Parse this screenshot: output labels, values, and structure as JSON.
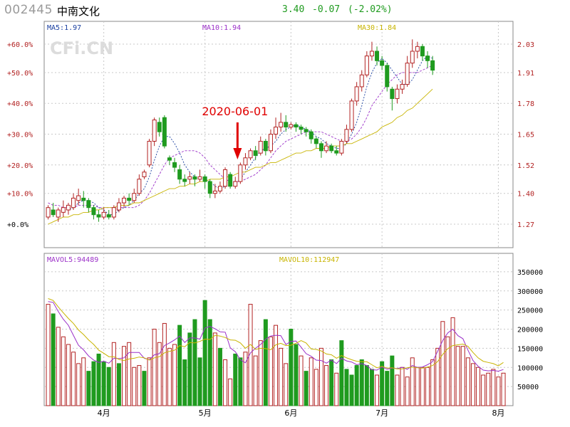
{
  "header": {
    "code": "002445",
    "name": "中南文化",
    "price": "3.40",
    "change": "-0.07",
    "change_pct": "(-2.02%)"
  },
  "colors": {
    "up": "#b22222",
    "down": "#1f9b1f",
    "ma5": "#1a3fa0",
    "ma10": "#9b30c8",
    "ma30": "#c8b400",
    "grid": "#c8c8c8",
    "annotation": "#e00000"
  },
  "chart_data": [
    {
      "type": "candlestick",
      "watermark": "CFi.CN",
      "legend": {
        "ma5": "MA5:1.97",
        "ma10": "MA10:1.94",
        "ma30": "MA30:1.84"
      },
      "y_left_ticks": [
        "+60.0%",
        "+50.0%",
        "+40.0%",
        "+30.0%",
        "+20.0%",
        "+10.0%",
        "+0.0%"
      ],
      "y_right_ticks": [
        "2.03",
        "1.91",
        "1.78",
        "1.65",
        "1.52",
        "1.40",
        "1.27"
      ],
      "ylim": [
        1.22,
        2.1
      ],
      "annotation": {
        "text": "2020-06-01",
        "index": 38
      },
      "candles": [
        [
          1.3,
          1.34,
          1.29,
          1.35
        ],
        [
          1.33,
          1.31,
          1.3,
          1.36
        ],
        [
          1.3,
          1.33,
          1.28,
          1.34
        ],
        [
          1.32,
          1.34,
          1.3,
          1.37
        ],
        [
          1.33,
          1.35,
          1.31,
          1.36
        ],
        [
          1.34,
          1.38,
          1.33,
          1.4
        ],
        [
          1.37,
          1.39,
          1.35,
          1.42
        ],
        [
          1.38,
          1.37,
          1.34,
          1.41
        ],
        [
          1.37,
          1.34,
          1.32,
          1.38
        ],
        [
          1.34,
          1.31,
          1.29,
          1.35
        ],
        [
          1.31,
          1.3,
          1.28,
          1.33
        ],
        [
          1.3,
          1.32,
          1.29,
          1.34
        ],
        [
          1.31,
          1.3,
          1.29,
          1.33
        ],
        [
          1.3,
          1.34,
          1.29,
          1.35
        ],
        [
          1.33,
          1.36,
          1.32,
          1.38
        ],
        [
          1.36,
          1.38,
          1.34,
          1.39
        ],
        [
          1.38,
          1.37,
          1.35,
          1.4
        ],
        [
          1.37,
          1.4,
          1.36,
          1.42
        ],
        [
          1.4,
          1.46,
          1.39,
          1.48
        ],
        [
          1.47,
          1.49,
          1.46,
          1.5
        ],
        [
          1.52,
          1.62,
          1.51,
          1.63
        ],
        [
          1.62,
          1.71,
          1.6,
          1.72
        ],
        [
          1.7,
          1.66,
          1.64,
          1.72
        ],
        [
          1.72,
          1.6,
          1.59,
          1.73
        ],
        [
          1.55,
          1.54,
          1.52,
          1.56
        ],
        [
          1.53,
          1.51,
          1.49,
          1.55
        ],
        [
          1.5,
          1.46,
          1.44,
          1.52
        ],
        [
          1.46,
          1.45,
          1.43,
          1.48
        ],
        [
          1.46,
          1.47,
          1.44,
          1.49
        ],
        [
          1.47,
          1.46,
          1.43,
          1.48
        ],
        [
          1.46,
          1.47,
          1.45,
          1.5
        ],
        [
          1.47,
          1.45,
          1.42,
          1.48
        ],
        [
          1.45,
          1.4,
          1.38,
          1.46
        ],
        [
          1.4,
          1.41,
          1.38,
          1.44
        ],
        [
          1.41,
          1.43,
          1.4,
          1.45
        ],
        [
          1.43,
          1.5,
          1.42,
          1.51
        ],
        [
          1.48,
          1.43,
          1.42,
          1.49
        ],
        [
          1.43,
          1.45,
          1.42,
          1.47
        ],
        [
          1.45,
          1.52,
          1.44,
          1.53
        ],
        [
          1.52,
          1.55,
          1.5,
          1.57
        ],
        [
          1.55,
          1.58,
          1.54,
          1.59
        ],
        [
          1.58,
          1.56,
          1.54,
          1.6
        ],
        [
          1.57,
          1.62,
          1.56,
          1.64
        ],
        [
          1.62,
          1.58,
          1.56,
          1.63
        ],
        [
          1.58,
          1.65,
          1.57,
          1.67
        ],
        [
          1.65,
          1.68,
          1.63,
          1.72
        ],
        [
          1.68,
          1.7,
          1.66,
          1.74
        ],
        [
          1.7,
          1.68,
          1.66,
          1.73
        ],
        [
          1.68,
          1.69,
          1.67,
          1.7
        ],
        [
          1.69,
          1.68,
          1.66,
          1.7
        ],
        [
          1.68,
          1.67,
          1.65,
          1.69
        ],
        [
          1.67,
          1.66,
          1.64,
          1.68
        ],
        [
          1.66,
          1.63,
          1.61,
          1.67
        ],
        [
          1.63,
          1.61,
          1.59,
          1.64
        ],
        [
          1.61,
          1.58,
          1.55,
          1.62
        ],
        [
          1.58,
          1.6,
          1.57,
          1.62
        ],
        [
          1.6,
          1.58,
          1.57,
          1.61
        ],
        [
          1.58,
          1.57,
          1.56,
          1.6
        ],
        [
          1.57,
          1.62,
          1.56,
          1.63
        ],
        [
          1.62,
          1.67,
          1.61,
          1.69
        ],
        [
          1.67,
          1.79,
          1.66,
          1.8
        ],
        [
          1.79,
          1.85,
          1.77,
          1.87
        ],
        [
          1.85,
          1.9,
          1.83,
          1.92
        ],
        [
          1.9,
          1.98,
          1.89,
          2.0
        ],
        [
          1.98,
          2.0,
          1.96,
          2.04
        ],
        [
          2.0,
          1.96,
          1.94,
          2.02
        ],
        [
          1.96,
          1.94,
          1.92,
          1.98
        ],
        [
          1.94,
          1.85,
          1.83,
          1.95
        ],
        [
          1.84,
          1.8,
          1.75,
          1.85
        ],
        [
          1.8,
          1.84,
          1.78,
          1.86
        ],
        [
          1.84,
          1.86,
          1.82,
          1.88
        ],
        [
          1.86,
          1.95,
          1.85,
          1.98
        ],
        [
          1.95,
          2.0,
          1.93,
          2.05
        ],
        [
          2.0,
          2.02,
          1.97,
          2.04
        ],
        [
          2.02,
          1.98,
          1.96,
          2.03
        ],
        [
          1.98,
          1.96,
          1.93,
          2.0
        ],
        [
          1.96,
          1.92,
          1.9,
          1.98
        ]
      ],
      "ma5": [
        1.33,
        1.33,
        1.32,
        1.33,
        1.33,
        1.34,
        1.36,
        1.37,
        1.37,
        1.36,
        1.34,
        1.33,
        1.31,
        1.31,
        1.33,
        1.34,
        1.35,
        1.37,
        1.4,
        1.42,
        1.47,
        1.54,
        1.6,
        1.64,
        1.64,
        1.61,
        1.57,
        1.52,
        1.49,
        1.47,
        1.46,
        1.46,
        1.45,
        1.43,
        1.42,
        1.43,
        1.43,
        1.44,
        1.46,
        1.49,
        1.52,
        1.55,
        1.58,
        1.59,
        1.6,
        1.62,
        1.65,
        1.67,
        1.68,
        1.69,
        1.68,
        1.67,
        1.66,
        1.64,
        1.63,
        1.61,
        1.6,
        1.59,
        1.59,
        1.61,
        1.65,
        1.7,
        1.77,
        1.85,
        1.91,
        1.95,
        1.97,
        1.95,
        1.92,
        1.89,
        1.86,
        1.86,
        1.88,
        1.92,
        1.96,
        1.98,
        1.97
      ],
      "ma10": [
        1.36,
        1.35,
        1.35,
        1.34,
        1.34,
        1.34,
        1.35,
        1.35,
        1.35,
        1.35,
        1.34,
        1.34,
        1.34,
        1.34,
        1.34,
        1.34,
        1.34,
        1.34,
        1.35,
        1.37,
        1.4,
        1.44,
        1.48,
        1.52,
        1.55,
        1.56,
        1.57,
        1.58,
        1.58,
        1.58,
        1.57,
        1.55,
        1.52,
        1.5,
        1.48,
        1.46,
        1.45,
        1.45,
        1.45,
        1.46,
        1.47,
        1.48,
        1.5,
        1.52,
        1.55,
        1.58,
        1.6,
        1.62,
        1.63,
        1.64,
        1.65,
        1.66,
        1.66,
        1.66,
        1.66,
        1.65,
        1.64,
        1.63,
        1.62,
        1.62,
        1.63,
        1.65,
        1.68,
        1.72,
        1.77,
        1.8,
        1.83,
        1.86,
        1.88,
        1.9,
        1.91,
        1.91,
        1.91,
        1.91,
        1.92,
        1.93,
        1.94
      ],
      "ma30": [
        1.27,
        1.28,
        1.29,
        1.3,
        1.3,
        1.31,
        1.31,
        1.32,
        1.32,
        1.33,
        1.33,
        1.34,
        1.34,
        1.34,
        1.35,
        1.35,
        1.35,
        1.36,
        1.36,
        1.37,
        1.38,
        1.39,
        1.4,
        1.41,
        1.42,
        1.42,
        1.43,
        1.43,
        1.44,
        1.44,
        1.45,
        1.45,
        1.46,
        1.46,
        1.46,
        1.47,
        1.47,
        1.48,
        1.49,
        1.49,
        1.5,
        1.51,
        1.51,
        1.52,
        1.53,
        1.53,
        1.54,
        1.55,
        1.56,
        1.57,
        1.57,
        1.58,
        1.58,
        1.59,
        1.59,
        1.59,
        1.6,
        1.6,
        1.6,
        1.61,
        1.61,
        1.62,
        1.63,
        1.64,
        1.65,
        1.66,
        1.68,
        1.69,
        1.7,
        1.72,
        1.73,
        1.75,
        1.76,
        1.78,
        1.8,
        1.82,
        1.84
      ]
    },
    {
      "type": "bar",
      "legend": {
        "mavol5": "MAVOL5:94489",
        "mavol10": "MAVOL10:112947"
      },
      "y_ticks": [
        "350000",
        "300000",
        "250000",
        "200000",
        "150000",
        "100000",
        "50000"
      ],
      "y_tick_values": [
        350000,
        300000,
        250000,
        200000,
        150000,
        100000,
        50000
      ],
      "ylim": [
        0,
        400000
      ],
      "x_ticks": [
        {
          "label": "4月",
          "index": 11
        },
        {
          "label": "5月",
          "index": 31
        },
        {
          "label": "6月",
          "index": 48
        },
        {
          "label": "7月",
          "index": 66
        },
        {
          "label": "8月",
          "index": 89
        }
      ],
      "volume": [
        265000,
        240000,
        205000,
        180000,
        160000,
        140000,
        110000,
        125000,
        90000,
        115000,
        135000,
        115000,
        100000,
        165000,
        110000,
        155000,
        165000,
        100000,
        105000,
        90000,
        125000,
        200000,
        165000,
        215000,
        150000,
        160000,
        210000,
        120000,
        190000,
        225000,
        125000,
        275000,
        225000,
        190000,
        150000,
        120000,
        70000,
        135000,
        125000,
        140000,
        265000,
        130000,
        170000,
        225000,
        180000,
        210000,
        150000,
        110000,
        200000,
        160000,
        130000,
        90000,
        125000,
        95000,
        150000,
        105000,
        120000,
        85000,
        170000,
        95000,
        80000,
        105000,
        120000,
        105000,
        95000,
        80000,
        115000,
        90000,
        130000,
        80000,
        100000,
        75000,
        125000,
        100000,
        100000,
        100000,
        120000,
        150000,
        220000,
        180000,
        230000,
        155000,
        155000,
        125000,
        110000,
        100000,
        80000,
        85000,
        95000,
        75000,
        85000
      ],
      "mavol5": [
        272000,
        270000,
        246000,
        226000,
        210000,
        184000,
        158000,
        146000,
        130000,
        119000,
        113000,
        116000,
        111000,
        124000,
        123000,
        125000,
        139000,
        139000,
        139000,
        124000,
        120000,
        133000,
        136000,
        157000,
        164000,
        172000,
        182000,
        165000,
        177000,
        177000,
        174000,
        203000,
        207000,
        201000,
        193000,
        192000,
        151000,
        141000,
        120000,
        112000,
        138000,
        150000,
        160000,
        174000,
        182000,
        184000,
        183000,
        160000,
        168000,
        169000,
        153000,
        136000,
        129000,
        119000,
        118000,
        111000,
        119000,
        110000,
        124000,
        117000,
        114000,
        107000,
        110000,
        105000,
        94000,
        93000,
        101000,
        95000,
        98000,
        97000,
        100000,
        95000,
        105000,
        100000,
        101000,
        107000,
        115000,
        142000,
        170000,
        190000,
        200000,
        183000,
        175000,
        145000,
        118000,
        103000,
        93000,
        91000,
        92000,
        90000,
        94489
      ],
      "mavol10": [
        280000,
        275000,
        258000,
        243000,
        228000,
        215000,
        198000,
        186000,
        172000,
        160000,
        145000,
        137000,
        128000,
        128000,
        121000,
        118000,
        122000,
        124000,
        127000,
        125000,
        119000,
        125000,
        128000,
        138000,
        142000,
        145000,
        157000,
        154000,
        165000,
        164000,
        168000,
        174000,
        173000,
        184000,
        182000,
        178000,
        172000,
        171000,
        164000,
        150000,
        160000,
        147000,
        150000,
        149000,
        146000,
        159000,
        163000,
        157000,
        158000,
        163000,
        170000,
        164000,
        148000,
        147000,
        143000,
        135000,
        133000,
        124000,
        131000,
        125000,
        120000,
        116000,
        115000,
        115000,
        107000,
        99000,
        103000,
        98000,
        99000,
        96000,
        96000,
        99000,
        101000,
        99000,
        98000,
        101000,
        105000,
        115000,
        134000,
        149000,
        157000,
        159000,
        161000,
        155000,
        139000,
        125000,
        116000,
        113000,
        110000,
        104000,
        112947
      ]
    }
  ]
}
